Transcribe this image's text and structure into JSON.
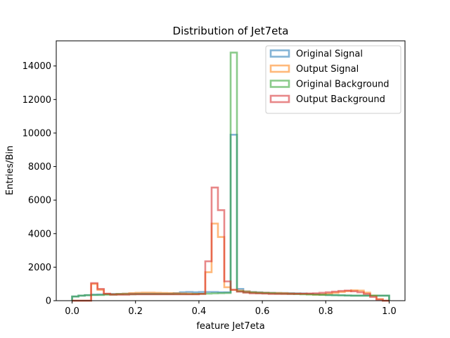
{
  "chart_data": {
    "type": "histogram",
    "title": "Distribution of Jet7eta",
    "xlabel": "feature Jet7eta",
    "ylabel": "Entries/Bin",
    "xlim": [
      -0.05,
      1.05
    ],
    "ylim": [
      0,
      15500
    ],
    "xticks": [
      0.0,
      0.2,
      0.4,
      0.6,
      0.8,
      1.0
    ],
    "xtick_labels": [
      "0.0",
      "0.2",
      "0.4",
      "0.6",
      "0.8",
      "1.0"
    ],
    "yticks": [
      0,
      2000,
      4000,
      6000,
      8000,
      10000,
      12000,
      14000
    ],
    "ytick_labels": [
      "0",
      "2000",
      "4000",
      "6000",
      "8000",
      "10000",
      "12000",
      "14000"
    ],
    "bin_edges_start": 0.0,
    "bin_width": 0.02,
    "n_bins": 50,
    "legend_position": "top-right",
    "grid": false,
    "series": [
      {
        "name": "Original Signal",
        "color": "#1f77b4",
        "values": [
          250,
          300,
          330,
          360,
          370,
          390,
          400,
          410,
          420,
          420,
          420,
          420,
          420,
          420,
          420,
          420,
          450,
          500,
          520,
          500,
          520,
          520,
          520,
          500,
          500,
          9900,
          700,
          560,
          520,
          500,
          480,
          470,
          460,
          460,
          450,
          440,
          430,
          400,
          380,
          360,
          340,
          330,
          320,
          310,
          300,
          300,
          300,
          300,
          300,
          300
        ]
      },
      {
        "name": "Output Signal",
        "color": "#ff7f0e",
        "values": [
          0,
          0,
          0,
          1000,
          650,
          400,
          380,
          400,
          420,
          450,
          470,
          480,
          480,
          470,
          460,
          450,
          440,
          430,
          420,
          400,
          410,
          1700,
          4600,
          3800,
          800,
          650,
          600,
          550,
          500,
          480,
          470,
          460,
          460,
          450,
          430,
          420,
          400,
          380,
          360,
          370,
          420,
          470,
          520,
          570,
          620,
          600,
          480,
          300,
          100,
          0
        ]
      },
      {
        "name": "Original Background",
        "color": "#2ca02c",
        "values": [
          250,
          300,
          330,
          340,
          340,
          360,
          360,
          380,
          380,
          380,
          390,
          390,
          390,
          390,
          390,
          390,
          390,
          390,
          390,
          400,
          410,
          420,
          440,
          450,
          460,
          14800,
          560,
          500,
          480,
          460,
          450,
          440,
          420,
          410,
          400,
          390,
          380,
          370,
          360,
          350,
          340,
          330,
          320,
          310,
          300,
          300,
          300,
          300,
          300,
          300
        ]
      },
      {
        "name": "Output Background",
        "color": "#d62728",
        "values": [
          0,
          0,
          0,
          1050,
          700,
          420,
          360,
          360,
          360,
          380,
          380,
          380,
          380,
          380,
          380,
          380,
          380,
          380,
          380,
          380,
          400,
          2350,
          6750,
          5400,
          1150,
          650,
          540,
          480,
          440,
          430,
          420,
          400,
          400,
          400,
          400,
          410,
          420,
          430,
          440,
          470,
          500,
          540,
          580,
          600,
          560,
          500,
          400,
          220,
          60,
          0
        ]
      }
    ]
  }
}
